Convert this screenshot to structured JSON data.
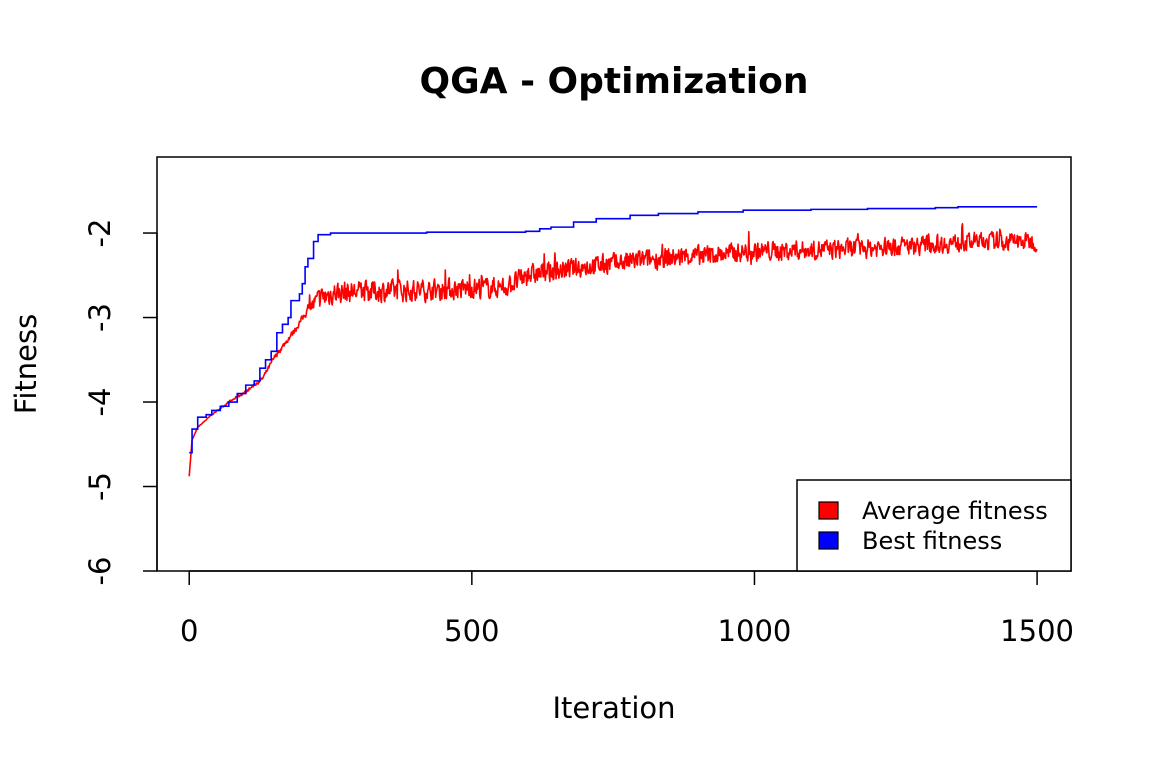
{
  "chart_data": {
    "type": "line",
    "title": "QGA - Optimization",
    "xlabel": "Iteration",
    "ylabel": "Fitness",
    "xlim": [
      -57,
      1560
    ],
    "ylim": [
      -6.0,
      -1.1
    ],
    "x_ticks": [
      0,
      500,
      1000,
      1500
    ],
    "y_ticks": [
      -6,
      -5,
      -4,
      -3,
      -2
    ],
    "grid": false,
    "legend_position": "bottom-right",
    "series": [
      {
        "name": "Average fitness",
        "color": "#ff0000",
        "trend": [
          [
            0,
            -4.88
          ],
          [
            5,
            -4.45
          ],
          [
            15,
            -4.3
          ],
          [
            40,
            -4.15
          ],
          [
            70,
            -4.0
          ],
          [
            100,
            -3.88
          ],
          [
            130,
            -3.72
          ],
          [
            150,
            -3.48
          ],
          [
            170,
            -3.3
          ],
          [
            190,
            -3.12
          ],
          [
            210,
            -2.9
          ],
          [
            230,
            -2.78
          ],
          [
            260,
            -2.7
          ],
          [
            400,
            -2.68
          ],
          [
            560,
            -2.64
          ],
          [
            600,
            -2.5
          ],
          [
            700,
            -2.4
          ],
          [
            800,
            -2.32
          ],
          [
            1000,
            -2.22
          ],
          [
            1200,
            -2.18
          ],
          [
            1400,
            -2.1
          ],
          [
            1500,
            -2.1
          ]
        ],
        "noise": [
          [
            0,
            0.0
          ],
          [
            200,
            0.06
          ],
          [
            230,
            0.22
          ],
          [
            1500,
            0.18
          ]
        ]
      },
      {
        "name": "Best fitness",
        "color": "#0000ff",
        "steps": [
          [
            0,
            -4.6
          ],
          [
            5,
            -4.32
          ],
          [
            15,
            -4.18
          ],
          [
            30,
            -4.15
          ],
          [
            40,
            -4.1
          ],
          [
            55,
            -4.05
          ],
          [
            70,
            -4.0
          ],
          [
            85,
            -3.9
          ],
          [
            100,
            -3.8
          ],
          [
            115,
            -3.75
          ],
          [
            125,
            -3.6
          ],
          [
            135,
            -3.5
          ],
          [
            145,
            -3.4
          ],
          [
            155,
            -3.18
          ],
          [
            165,
            -3.08
          ],
          [
            175,
            -3.0
          ],
          [
            180,
            -2.8
          ],
          [
            195,
            -2.72
          ],
          [
            200,
            -2.6
          ],
          [
            205,
            -2.4
          ],
          [
            210,
            -2.3
          ],
          [
            220,
            -2.1
          ],
          [
            228,
            -2.02
          ],
          [
            250,
            -2.0
          ],
          [
            420,
            -1.99
          ],
          [
            595,
            -1.98
          ],
          [
            620,
            -1.95
          ],
          [
            640,
            -1.93
          ],
          [
            680,
            -1.87
          ],
          [
            720,
            -1.83
          ],
          [
            780,
            -1.79
          ],
          [
            830,
            -1.77
          ],
          [
            900,
            -1.75
          ],
          [
            980,
            -1.73
          ],
          [
            1100,
            -1.72
          ],
          [
            1200,
            -1.71
          ],
          [
            1320,
            -1.7
          ],
          [
            1360,
            -1.69
          ],
          [
            1500,
            -1.69
          ]
        ]
      }
    ]
  }
}
